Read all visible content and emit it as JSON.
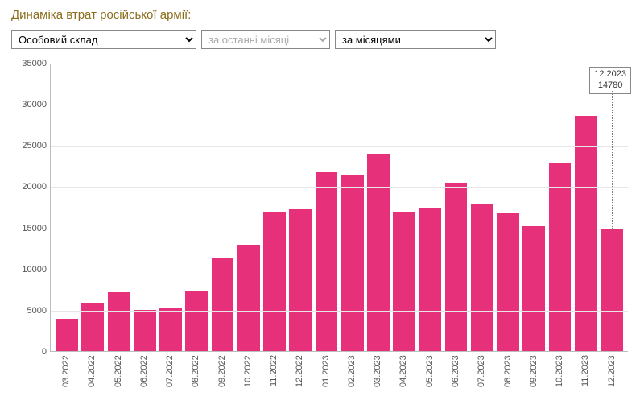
{
  "title": {
    "text": "Динаміка втрат російської армії:",
    "color": "#8a6d1b"
  },
  "controls": {
    "select1": {
      "value": "Особовий склад"
    },
    "select2": {
      "value": "за останні місяці",
      "disabled_style": true,
      "suffix": " ˅"
    },
    "select3": {
      "value": "за місяцями"
    }
  },
  "chart": {
    "type": "bar",
    "ylim": [
      0,
      35000
    ],
    "ytick_step": 5000,
    "yticks": [
      0,
      5000,
      10000,
      15000,
      20000,
      25000,
      30000,
      35000
    ],
    "grid_color": "#e6e6e6",
    "axis_color": "#bcbcbc",
    "bar_color": "#e6317a",
    "background_color": "#ffffff",
    "label_color": "#555555",
    "label_fontsize": 11,
    "bar_width": 0.86,
    "categories": [
      "03.2022",
      "04.2022",
      "05.2022",
      "06.2022",
      "07.2022",
      "08.2022",
      "09.2022",
      "10.2022",
      "11.2022",
      "12.2022",
      "01.2023",
      "02.2023",
      "03.2023",
      "04.2023",
      "05.2023",
      "06.2023",
      "07.2023",
      "08.2023",
      "09.2023",
      "10.2023",
      "11.2023",
      "12.2023"
    ],
    "values": [
      3900,
      5900,
      7200,
      5000,
      5300,
      7400,
      11300,
      12900,
      17000,
      17300,
      21800,
      21500,
      24000,
      17000,
      17500,
      20500,
      17900,
      16800,
      15200,
      22900,
      28600,
      14780
    ],
    "tooltip": {
      "category": "12.2023",
      "value": "14780",
      "bar_index": 21,
      "border_color": "#888888",
      "bg_color": "#ffffff"
    }
  }
}
